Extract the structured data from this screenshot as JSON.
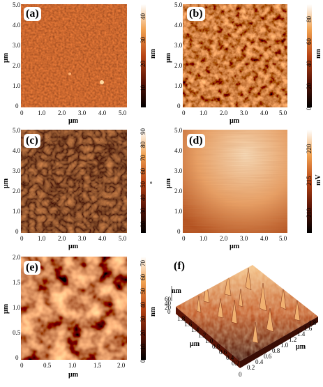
{
  "panels": {
    "a": {
      "label": "(a)",
      "x_ticks": [
        "0",
        "1.0",
        "2.0",
        "3.0",
        "4.0",
        "5.0"
      ],
      "y_ticks": [
        "0",
        "1.0",
        "2.0",
        "3.0",
        "4.0",
        "5.0"
      ],
      "x_label": "µm",
      "y_label": "µm",
      "cbar_ticks": [
        "10",
        "20",
        "30",
        "40"
      ],
      "cbar_unit": "nm"
    },
    "b": {
      "label": "(b)",
      "x_ticks": [
        "0",
        "1.0",
        "2.0",
        "3.0",
        "4.0",
        "5.0"
      ],
      "y_ticks": [
        "0",
        "1.0",
        "2.0",
        "3.0",
        "4.0",
        "5.0"
      ],
      "x_label": "µm",
      "y_label": "µm",
      "cbar_ticks": [
        "0",
        "20",
        "40",
        "60",
        "80"
      ],
      "cbar_unit": "nm"
    },
    "c": {
      "label": "(c)",
      "x_ticks": [
        "0",
        "1.0",
        "2.0",
        "3.0",
        "4.0",
        "5.0"
      ],
      "y_ticks": [
        "0",
        "1.0",
        "2.0",
        "3.0",
        "4.0",
        "5.0"
      ],
      "x_label": "µm",
      "y_label": "µm",
      "cbar_ticks": [
        "20",
        "30",
        "40",
        "50",
        "60",
        "70",
        "80",
        "90"
      ],
      "cbar_unit": "°"
    },
    "d": {
      "label": "(d)",
      "x_ticks": [
        "0",
        "1.0",
        "2.0",
        "3.0",
        "4.0",
        "5.0"
      ],
      "y_ticks": [
        "0",
        "1.0",
        "2.0",
        "3.0",
        "4.0",
        "5.0"
      ],
      "x_label": "µm",
      "y_label": "µm",
      "cbar_ticks": [
        "210",
        "215",
        "220"
      ],
      "cbar_unit": "mV"
    },
    "e": {
      "label": "(e)",
      "x_ticks": [
        "0",
        "0.5",
        "1.0",
        "1.5",
        "2.0"
      ],
      "y_ticks": [
        "0",
        "0.5",
        "1.0",
        "1.5",
        "2.0"
      ],
      "x_label": "µm",
      "y_label": "µm",
      "cbar_ticks": [
        "0",
        "10",
        "20",
        "30",
        "40",
        "50",
        "60",
        "70"
      ],
      "cbar_unit": "nm"
    },
    "f": {
      "label": "(f)",
      "z_unit": "nm",
      "z_ticks": [
        "0",
        "20",
        "40",
        "60"
      ],
      "x_ticks": [
        "0",
        "0.2",
        "0.4",
        "0.6",
        "0.8",
        "1.0",
        "1.2",
        "1.4",
        "1.6",
        "1.8"
      ],
      "y_ticks": [
        "0.2",
        "0.4",
        "0.6",
        "0.8",
        "1.0",
        "1.2",
        "1.4",
        "1.6",
        "1.8"
      ],
      "x_label": "µm",
      "y_label": "µm"
    }
  },
  "colors": {
    "afm_dark": "#3a0d05",
    "afm_mid": "#c0521e",
    "afm_light": "#ffd9a0",
    "potential_light": "#fbe3c2",
    "potential_dark": "#b04a18"
  }
}
